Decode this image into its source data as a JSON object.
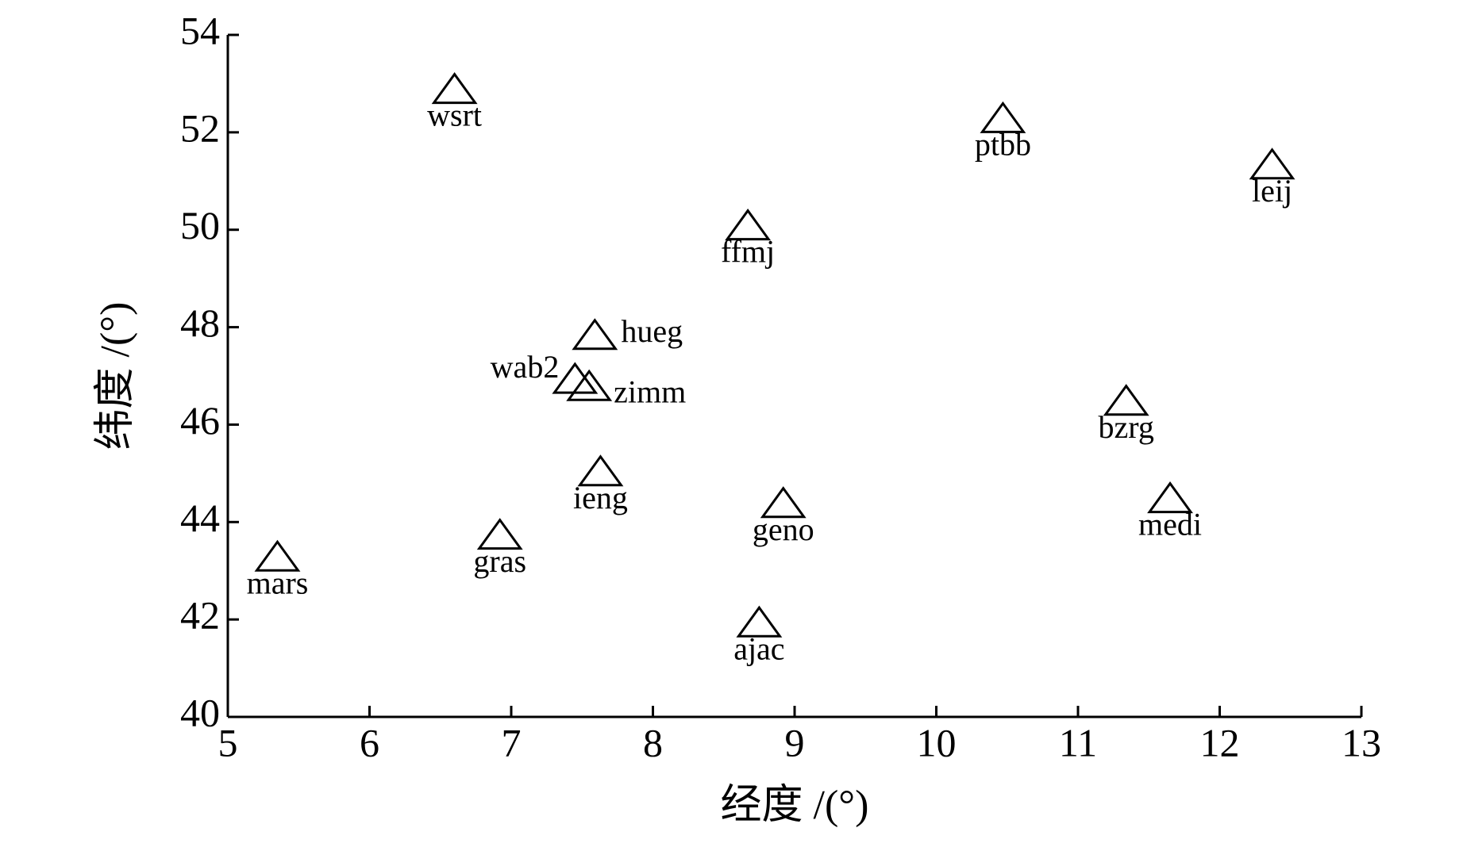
{
  "chart_data": {
    "type": "scatter",
    "marker": "triangle",
    "color": "#000000",
    "x_label": "经度 /(°)",
    "y_label": "纬度 /(°)",
    "labels": [
      "wsrt",
      "ptbb",
      "leij",
      "ffmj",
      "hueg",
      "wab2",
      "zimm",
      "bzrg",
      "ieng",
      "geno",
      "medi",
      "gras",
      "mars",
      "ajac"
    ],
    "x": [
      6.6,
      10.47,
      12.37,
      8.67,
      7.59,
      7.45,
      7.55,
      11.34,
      7.63,
      8.92,
      11.65,
      6.92,
      5.35,
      8.75
    ],
    "values": [
      52.9,
      52.3,
      51.35,
      50.1,
      47.85,
      46.95,
      46.8,
      46.5,
      45.05,
      44.4,
      44.5,
      43.75,
      43.3,
      41.95
    ],
    "xlim": [
      5,
      13
    ],
    "xticks": [
      5,
      6,
      7,
      8,
      9,
      10,
      11,
      12,
      13
    ],
    "ylim": [
      40,
      54
    ],
    "yticks": [
      40,
      42,
      44,
      46,
      48,
      50,
      52,
      54
    ]
  }
}
